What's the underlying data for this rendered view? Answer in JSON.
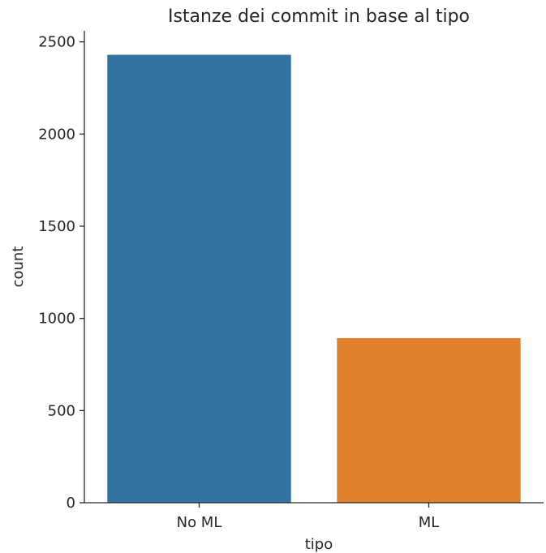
{
  "chart_data": {
    "type": "bar",
    "title": "Istanze dei commit in base al tipo",
    "xlabel": "tipo",
    "ylabel": "count",
    "categories": [
      "No ML",
      "ML"
    ],
    "values": [
      2430,
      893
    ],
    "colors": [
      "#3274a1",
      "#e1812c"
    ],
    "ylim": [
      0,
      2560
    ],
    "yticks": [
      0,
      500,
      1000,
      1500,
      2000,
      2500
    ],
    "ytick_labels": [
      "0",
      "500",
      "1000",
      "1500",
      "2000",
      "2500"
    ],
    "grid": false,
    "legend": "none"
  }
}
